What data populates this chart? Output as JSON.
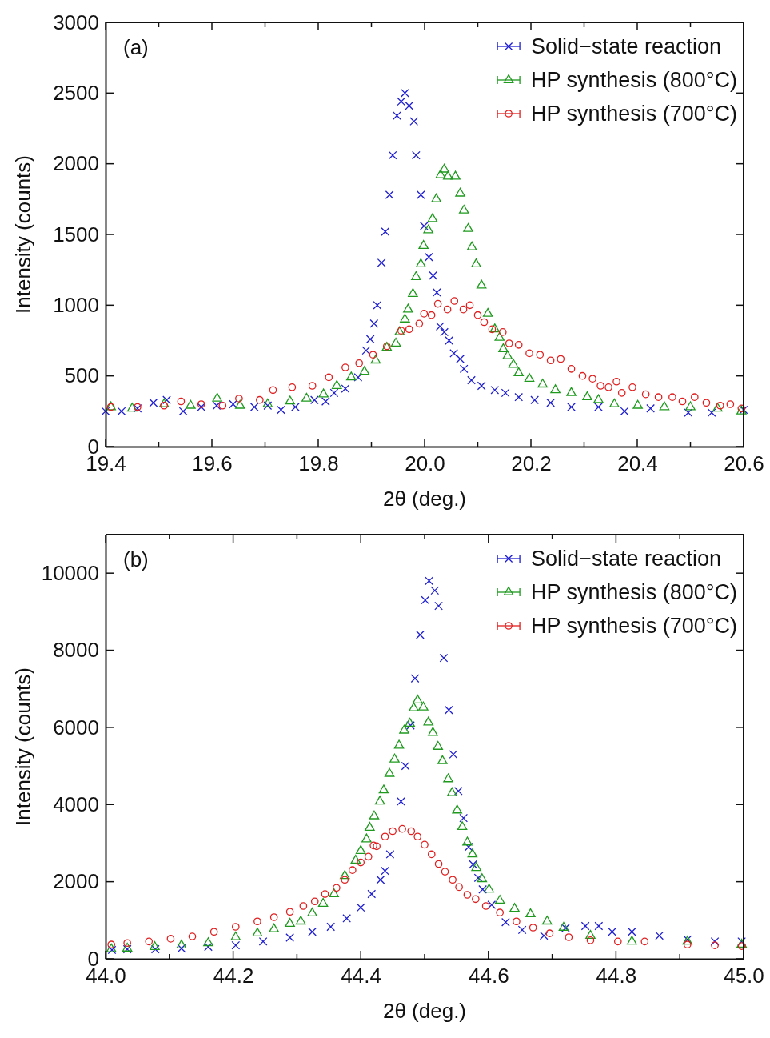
{
  "chart_data": [
    {
      "type": "scatter",
      "xlabel": "2θ (deg.)",
      "ylabel": "Intensity (counts)",
      "annotations": [
        "(a)"
      ],
      "xlim": [
        19.4,
        20.6
      ],
      "ylim": [
        0,
        3000
      ],
      "xticks": [
        19.4,
        {
          "value": 19.5,
          "label": null
        },
        19.6,
        {
          "value": 19.7,
          "label": null
        },
        19.8,
        {
          "value": 19.9,
          "label": null
        },
        {
          "value": 20,
          "label": "20.0"
        },
        {
          "value": 20.1,
          "label": null
        },
        20.2,
        {
          "value": 20.3,
          "label": null
        },
        20.4,
        {
          "value": 20.5,
          "label": null
        },
        20.6
      ],
      "yticks": [
        0,
        500,
        1000,
        1500,
        2000,
        2500,
        3000
      ],
      "legend": "top right",
      "grid": false,
      "series": [
        {
          "name": "Solid−state reaction",
          "color": "#1f1fd0",
          "marker": "cross",
          "x": [
            19.4,
            19.43,
            19.46,
            19.49,
            19.515,
            19.546,
            19.58,
            19.609,
            19.64,
            19.68,
            19.705,
            19.73,
            19.757,
            19.793,
            19.814,
            19.83,
            19.851,
            19.875,
            19.89,
            19.898,
            19.905,
            19.911,
            19.919,
            19.926,
            19.934,
            19.94,
            19.948,
            19.956,
            19.963,
            19.971,
            19.98,
            19.984,
            19.993,
            19.999,
            20.008,
            20.016,
            20.023,
            20.029,
            20.037,
            20.046,
            20.055,
            20.067,
            20.074,
            20.088,
            20.107,
            20.132,
            20.152,
            20.177,
            20.207,
            20.237,
            20.276,
            20.327,
            20.376,
            20.425,
            20.496,
            20.54,
            20.6
          ],
          "values": [
            250,
            250,
            270,
            310,
            330,
            250,
            280,
            290,
            300,
            280,
            290,
            260,
            280,
            330,
            320,
            380,
            410,
            490,
            680,
            760,
            870,
            1000,
            1300,
            1520,
            1780,
            2060,
            2340,
            2440,
            2500,
            2410,
            2300,
            2060,
            1780,
            1560,
            1340,
            1210,
            1090,
            850,
            810,
            750,
            660,
            620,
            550,
            470,
            430,
            400,
            380,
            350,
            330,
            310,
            280,
            280,
            250,
            270,
            240,
            240,
            260
          ]
        },
        {
          "name": "HP synthesis (800°C)",
          "color": "#1f9a1f",
          "marker": "triangle",
          "x": [
            19.41,
            19.45,
            19.51,
            19.56,
            19.61,
            19.653,
            19.705,
            19.747,
            19.778,
            19.81,
            19.835,
            19.862,
            19.887,
            19.908,
            19.929,
            19.946,
            19.953,
            19.963,
            19.969,
            19.978,
            19.984,
            19.993,
            19.998,
            20.007,
            20.015,
            20.022,
            20.03,
            20.037,
            20.044,
            20.058,
            20.067,
            20.074,
            20.082,
            20.089,
            20.097,
            20.107,
            20.119,
            20.132,
            20.141,
            20.148,
            20.156,
            20.167,
            20.177,
            20.197,
            20.222,
            20.246,
            20.276,
            20.306,
            20.327,
            20.357,
            20.401,
            20.451,
            20.5,
            20.551,
            20.596
          ],
          "values": [
            280,
            270,
            300,
            290,
            340,
            290,
            300,
            320,
            340,
            370,
            430,
            490,
            530,
            610,
            700,
            730,
            810,
            900,
            970,
            1080,
            1200,
            1290,
            1420,
            1530,
            1610,
            1750,
            1920,
            1960,
            1910,
            1910,
            1790,
            1670,
            1540,
            1410,
            1290,
            1140,
            940,
            830,
            770,
            690,
            640,
            580,
            520,
            480,
            440,
            400,
            380,
            350,
            330,
            300,
            290,
            280,
            280,
            270,
            250
          ]
        },
        {
          "name": "HP synthesis (700°C)",
          "color": "#e02020",
          "marker": "circle",
          "x": [
            19.41,
            19.46,
            19.51,
            19.542,
            19.58,
            19.62,
            19.651,
            19.69,
            19.715,
            19.751,
            19.789,
            19.82,
            19.851,
            19.877,
            19.903,
            19.929,
            19.956,
            19.971,
            19.99,
            19.999,
            20.013,
            20.025,
            20.043,
            20.056,
            20.073,
            20.085,
            20.1,
            20.112,
            20.127,
            20.147,
            20.159,
            20.177,
            20.197,
            20.217,
            20.237,
            20.256,
            20.276,
            20.297,
            20.316,
            20.331,
            20.346,
            20.361,
            20.371,
            20.391,
            20.416,
            20.44,
            20.466,
            20.485,
            20.508,
            20.53,
            20.556,
            20.575,
            20.596
          ],
          "values": [
            280,
            280,
            290,
            320,
            300,
            290,
            340,
            330,
            400,
            420,
            430,
            490,
            560,
            590,
            650,
            710,
            820,
            830,
            870,
            940,
            930,
            1010,
            970,
            1030,
            970,
            1000,
            930,
            880,
            830,
            810,
            730,
            720,
            660,
            650,
            610,
            620,
            550,
            500,
            480,
            430,
            420,
            460,
            380,
            420,
            370,
            350,
            350,
            320,
            350,
            310,
            290,
            300,
            270
          ]
        }
      ]
    },
    {
      "type": "scatter",
      "xlabel": "2θ (deg.)",
      "ylabel": "Intensity (counts)",
      "annotations": [
        "(b)"
      ],
      "xlim": [
        44,
        45
      ],
      "ylim": [
        0,
        11000
      ],
      "xticks": [
        {
          "value": 44,
          "label": "44.0"
        },
        {
          "value": 44.1,
          "label": null
        },
        44.2,
        {
          "value": 44.3,
          "label": null
        },
        44.4,
        {
          "value": 44.5,
          "label": null
        },
        44.6,
        {
          "value": 44.7,
          "label": null
        },
        44.8,
        {
          "value": 44.9,
          "label": null
        },
        {
          "value": 45,
          "label": "45.0"
        }
      ],
      "yticks": [
        0,
        2000,
        4000,
        6000,
        8000,
        10000
      ],
      "legend": "top right",
      "grid": false,
      "series": [
        {
          "name": "Solid−state reaction",
          "color": "#1f1fd0",
          "marker": "cross",
          "x": [
            44.01,
            44.034,
            44.078,
            44.119,
            44.161,
            44.204,
            44.247,
            44.289,
            44.324,
            44.353,
            44.378,
            44.4,
            44.417,
            44.431,
            44.438,
            44.446,
            44.463,
            44.47,
            44.478,
            44.485,
            44.493,
            44.501,
            44.507,
            44.516,
            44.522,
            44.53,
            44.538,
            44.545,
            44.553,
            44.561,
            44.569,
            44.576,
            44.584,
            44.591,
            44.605,
            44.627,
            44.653,
            44.687,
            44.721,
            44.752,
            44.773,
            44.794,
            44.825,
            44.868,
            44.912,
            44.955,
            44.997
          ],
          "values": [
            230,
            250,
            250,
            270,
            310,
            350,
            450,
            550,
            700,
            830,
            1050,
            1330,
            1680,
            2050,
            2280,
            2710,
            4080,
            5000,
            6050,
            7270,
            8400,
            9300,
            9800,
            9550,
            9150,
            7800,
            6450,
            5300,
            4350,
            3650,
            2900,
            2450,
            2100,
            1800,
            1400,
            950,
            750,
            600,
            800,
            850,
            850,
            700,
            700,
            600,
            500,
            450,
            450
          ]
        },
        {
          "name": "HP synthesis (800°C)",
          "color": "#1f9a1f",
          "marker": "triangle",
          "x": [
            44.009,
            44.034,
            44.077,
            44.119,
            44.161,
            44.204,
            44.238,
            44.264,
            44.289,
            44.306,
            44.324,
            44.341,
            44.358,
            44.375,
            44.392,
            44.4,
            44.409,
            44.414,
            44.421,
            44.43,
            44.436,
            44.445,
            44.453,
            44.46,
            44.468,
            44.477,
            44.483,
            44.489,
            44.498,
            44.506,
            44.513,
            44.521,
            44.528,
            44.537,
            44.543,
            44.551,
            44.559,
            44.567,
            44.575,
            44.581,
            44.59,
            44.601,
            44.618,
            44.641,
            44.666,
            44.692,
            44.718,
            44.76,
            44.825,
            44.912,
            44.997
          ],
          "values": [
            250,
            270,
            310,
            350,
            410,
            560,
            660,
            770,
            910,
            970,
            1180,
            1430,
            1680,
            2150,
            2550,
            2800,
            3100,
            3400,
            3700,
            4080,
            4370,
            4800,
            5170,
            5530,
            5920,
            6100,
            6500,
            6700,
            6520,
            6130,
            5860,
            5500,
            5130,
            4660,
            4300,
            3850,
            3420,
            3020,
            2710,
            2360,
            2070,
            1800,
            1510,
            1300,
            1160,
            970,
            810,
            600,
            450,
            450,
            370
          ]
        },
        {
          "name": "HP synthesis (700°C)",
          "color": "#e02020",
          "marker": "circle",
          "x": [
            44.009,
            44.034,
            44.068,
            44.102,
            44.136,
            44.17,
            44.204,
            44.238,
            44.264,
            44.289,
            44.31,
            44.328,
            44.344,
            44.362,
            44.375,
            44.387,
            44.4,
            44.412,
            44.42,
            44.425,
            44.438,
            44.45,
            44.465,
            44.479,
            44.489,
            44.5,
            44.511,
            44.522,
            44.532,
            44.544,
            44.554,
            44.567,
            44.58,
            44.596,
            44.618,
            44.644,
            44.67,
            44.696,
            44.726,
            44.76,
            44.803,
            44.845,
            44.912,
            44.955,
            44.997
          ],
          "values": [
            370,
            410,
            450,
            520,
            580,
            700,
            830,
            970,
            1080,
            1220,
            1370,
            1490,
            1680,
            1840,
            2050,
            2300,
            2500,
            2650,
            2940,
            2920,
            3170,
            3310,
            3370,
            3310,
            3170,
            2960,
            2710,
            2460,
            2260,
            2050,
            1860,
            1660,
            1550,
            1370,
            1200,
            970,
            810,
            660,
            560,
            480,
            450,
            450,
            370,
            350,
            330
          ]
        }
      ]
    }
  ]
}
